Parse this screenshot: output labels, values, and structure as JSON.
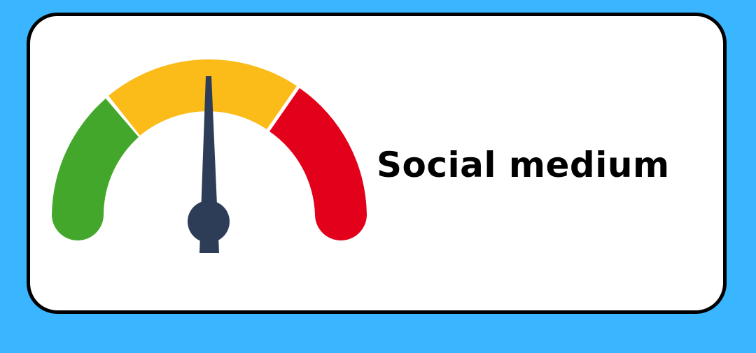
{
  "label": "Social medium",
  "gauge": {
    "level": "medium",
    "segments": [
      "low",
      "medium",
      "high"
    ]
  },
  "colors": {
    "background": "#39b6ff",
    "card": "#ffffff",
    "border": "#000000",
    "low": "#43a72c",
    "medium": "#fbbb19",
    "high": "#e2001a",
    "needle": "#2d3c57"
  }
}
